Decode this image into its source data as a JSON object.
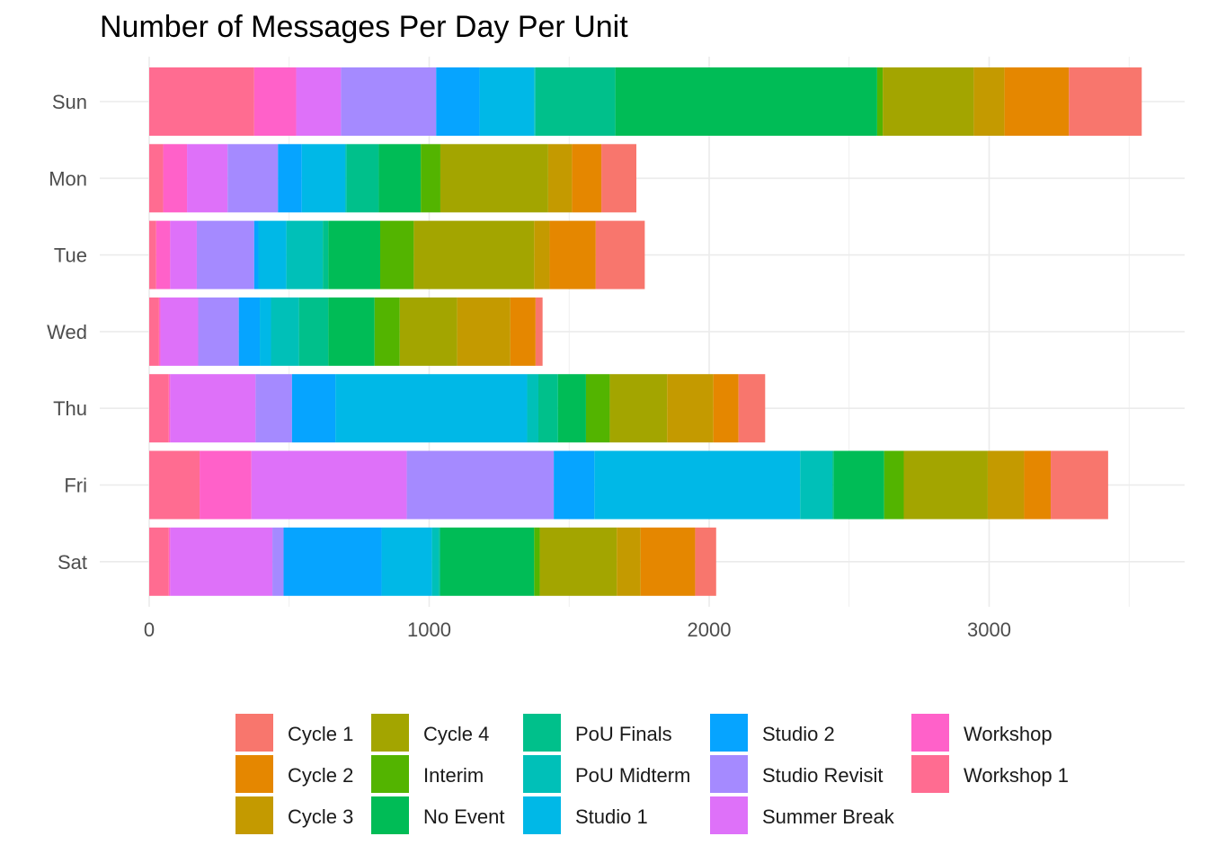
{
  "chart_data": {
    "type": "bar",
    "orientation": "horizontal",
    "stacked": true,
    "title": "Number of Messages Per Day Per Unit",
    "xlabel": "",
    "ylabel": "",
    "categories": [
      "Sun",
      "Mon",
      "Tue",
      "Wed",
      "Thu",
      "Fri",
      "Sat"
    ],
    "xlim": [
      0,
      3550
    ],
    "xticks": [
      0,
      1000,
      2000,
      3000
    ],
    "xtick_labels": [
      "0",
      "1000",
      "2000",
      "3000"
    ],
    "grid": true,
    "legend_position": "bottom",
    "series": [
      {
        "name": "Workshop 1",
        "color": "#FF6C91",
        "values": [
          375,
          50,
          25,
          35,
          70,
          180,
          70
        ]
      },
      {
        "name": "Workshop",
        "color": "#FF61C9",
        "values": [
          150,
          85,
          50,
          5,
          5,
          185,
          5
        ]
      },
      {
        "name": "Summer Break",
        "color": "#DE71F9",
        "values": [
          160,
          145,
          95,
          135,
          305,
          555,
          365
        ]
      },
      {
        "name": "Studio Revisit",
        "color": "#A58AFF",
        "values": [
          340,
          180,
          205,
          145,
          130,
          525,
          40
        ]
      },
      {
        "name": "Studio 2",
        "color": "#06A4FF",
        "values": [
          155,
          85,
          15,
          75,
          155,
          145,
          350
        ]
      },
      {
        "name": "Studio 1",
        "color": "#00B8E7",
        "values": [
          195,
          155,
          100,
          40,
          685,
          735,
          180
        ]
      },
      {
        "name": "PoU Midterm",
        "color": "#00C0B8",
        "values": [
          5,
          5,
          130,
          100,
          40,
          115,
          25
        ]
      },
      {
        "name": "PoU Finals",
        "color": "#00C08B",
        "values": [
          285,
          115,
          20,
          105,
          70,
          5,
          5
        ]
      },
      {
        "name": "No Event",
        "color": "#00BC56",
        "values": [
          935,
          150,
          185,
          165,
          100,
          180,
          335
        ]
      },
      {
        "name": "Interim",
        "color": "#53B400",
        "values": [
          20,
          70,
          120,
          90,
          85,
          70,
          20
        ]
      },
      {
        "name": "Cycle 4",
        "color": "#A3A500",
        "values": [
          325,
          385,
          430,
          205,
          205,
          300,
          275
        ]
      },
      {
        "name": "Cycle 3",
        "color": "#C49A00",
        "values": [
          110,
          85,
          55,
          190,
          165,
          130,
          85
        ]
      },
      {
        "name": "Cycle 2",
        "color": "#E58700",
        "values": [
          230,
          105,
          165,
          90,
          90,
          95,
          195
        ]
      },
      {
        "name": "Cycle 1",
        "color": "#F8766D",
        "values": [
          260,
          125,
          175,
          25,
          95,
          205,
          75
        ]
      }
    ],
    "legend": {
      "columns": [
        [
          "Cycle 1",
          "Cycle 2",
          "Cycle 3"
        ],
        [
          "Cycle 4",
          "Interim",
          "No Event"
        ],
        [
          "PoU Finals",
          "PoU Midterm",
          "Studio 1"
        ],
        [
          "Studio 2",
          "Studio Revisit",
          "Summer Break"
        ],
        [
          "Workshop",
          "Workshop 1"
        ]
      ]
    }
  }
}
